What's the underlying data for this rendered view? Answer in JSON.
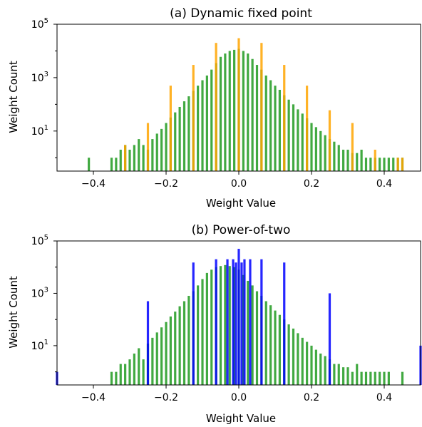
{
  "chart_data": [
    {
      "type": "bar",
      "title": "(a) Dynamic fixed point",
      "xlabel": "Weight Value",
      "ylabel": "Weight Count",
      "xlim": [
        -0.5,
        0.5
      ],
      "ylim_log10": [
        -0.5,
        5
      ],
      "yscale": "log",
      "x_ticks": [
        -0.4,
        -0.2,
        0.0,
        0.2,
        0.4
      ],
      "x_tick_labels": [
        "−0.4",
        "−0.2",
        "0.0",
        "0.2",
        "0.4"
      ],
      "y_ticks": [
        1,
        3,
        5
      ],
      "y_tick_base": "10",
      "series": [
        {
          "color": "#2ca02c",
          "bin_width": 0.00625,
          "x": [
            -0.4125,
            -0.35,
            -0.3375,
            -0.325,
            -0.3125,
            -0.3,
            -0.2875,
            -0.275,
            -0.2625,
            -0.25,
            -0.2375,
            -0.225,
            -0.2125,
            -0.2,
            -0.1875,
            -0.175,
            -0.1625,
            -0.15,
            -0.1375,
            -0.125,
            -0.1125,
            -0.1,
            -0.0875,
            -0.075,
            -0.0625,
            -0.05,
            -0.0375,
            -0.025,
            -0.0125,
            0.0,
            0.0125,
            0.025,
            0.0375,
            0.05,
            0.0625,
            0.075,
            0.0875,
            0.1,
            0.1125,
            0.125,
            0.1375,
            0.15,
            0.1625,
            0.175,
            0.1875,
            0.2,
            0.2125,
            0.225,
            0.2375,
            0.25,
            0.2625,
            0.275,
            0.2875,
            0.3,
            0.3125,
            0.325,
            0.3375,
            0.35,
            0.3625,
            0.375,
            0.3875,
            0.4,
            0.4125,
            0.425,
            0.4375,
            0.45
          ],
          "values": [
            1,
            1,
            1,
            2,
            3,
            2,
            3,
            5,
            3,
            2,
            5,
            8,
            12,
            20,
            32,
            50,
            80,
            130,
            200,
            320,
            500,
            800,
            1200,
            2000,
            3500,
            6000,
            8000,
            10000,
            11000,
            12000,
            10000,
            8000,
            5000,
            3000,
            2000,
            1200,
            800,
            500,
            350,
            220,
            150,
            100,
            65,
            45,
            30,
            20,
            14,
            10,
            7,
            5,
            4,
            3,
            2,
            2,
            1.5,
            1.5,
            2,
            1,
            1,
            1,
            1,
            1,
            1,
            1,
            1,
            1
          ]
        },
        {
          "color": "#ffa500",
          "bin_width": 0.0063,
          "x": [
            -0.3125,
            -0.25,
            -0.1875,
            -0.125,
            -0.0625,
            0.0,
            0.0625,
            0.125,
            0.1875,
            0.25,
            0.3125,
            0.375,
            0.4375,
            0.45
          ],
          "values": [
            3,
            20,
            500,
            3000,
            20000,
            30000,
            20000,
            3000,
            500,
            60,
            20,
            2,
            1,
            1
          ]
        }
      ]
    },
    {
      "type": "bar",
      "title": "(b) Power-of-two",
      "xlabel": "Weight Value",
      "ylabel": "Weight Count",
      "xlim": [
        -0.5,
        0.5
      ],
      "ylim_log10": [
        -0.5,
        5
      ],
      "yscale": "log",
      "x_ticks": [
        -0.4,
        -0.2,
        0.0,
        0.2,
        0.4
      ],
      "x_tick_labels": [
        "−0.4",
        "−0.2",
        "0.0",
        "0.2",
        "0.4"
      ],
      "y_ticks": [
        1,
        3,
        5
      ],
      "y_tick_base": "10",
      "series": [
        {
          "color": "#2ca02c",
          "bin_width": 0.00625,
          "x": [
            -0.35,
            -0.3375,
            -0.325,
            -0.3125,
            -0.3,
            -0.2875,
            -0.275,
            -0.2625,
            -0.25,
            -0.2375,
            -0.225,
            -0.2125,
            -0.2,
            -0.1875,
            -0.175,
            -0.1625,
            -0.15,
            -0.1375,
            -0.125,
            -0.1125,
            -0.1,
            -0.0875,
            -0.075,
            -0.0625,
            -0.05,
            -0.0375,
            -0.025,
            -0.0125,
            0.0,
            0.0125,
            0.025,
            0.0375,
            0.05,
            0.0625,
            0.075,
            0.0875,
            0.1,
            0.1125,
            0.125,
            0.1375,
            0.15,
            0.1625,
            0.175,
            0.1875,
            0.2,
            0.2125,
            0.225,
            0.2375,
            0.25,
            0.2625,
            0.275,
            0.2875,
            0.3,
            0.3125,
            0.325,
            0.3375,
            0.35,
            0.3625,
            0.375,
            0.3875,
            0.4,
            0.4125,
            0.45
          ],
          "values": [
            1,
            1,
            2,
            2,
            3,
            5,
            8,
            3,
            12,
            20,
            32,
            50,
            80,
            130,
            200,
            320,
            500,
            800,
            1200,
            2000,
            3500,
            6000,
            8000,
            10000,
            11000,
            12000,
            11000,
            10000,
            8000,
            5000,
            3000,
            2000,
            1200,
            800,
            500,
            350,
            220,
            150,
            100,
            65,
            45,
            30,
            20,
            14,
            10,
            7,
            5,
            4,
            3,
            2,
            2,
            1.5,
            1.5,
            1,
            2,
            1,
            1,
            1,
            1,
            1,
            1,
            1,
            1
          ]
        },
        {
          "color": "#0000ff",
          "bin_width": 0.0063,
          "x": [
            -0.5,
            -0.25,
            -0.125,
            -0.0625,
            -0.0313,
            -0.0156,
            -0.0078,
            0.0,
            0.0078,
            0.0156,
            0.0313,
            0.0625,
            0.125,
            0.25,
            0.5
          ],
          "values": [
            1,
            500,
            15000,
            20000,
            20000,
            20000,
            15000,
            50000,
            15000,
            20000,
            20000,
            20000,
            15000,
            1000,
            10
          ]
        }
      ]
    }
  ]
}
